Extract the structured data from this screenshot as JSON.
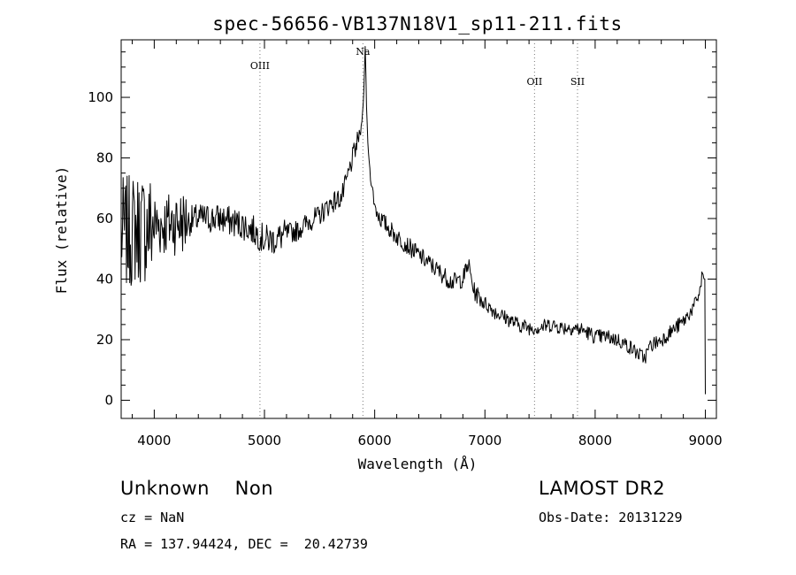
{
  "chart_data": {
    "type": "line",
    "title": "spec-56656-VB137N18V1_sp11-211.fits",
    "xlabel": "Wavelength (Å)",
    "ylabel": "Flux (relative)",
    "xlim": [
      3700,
      9100
    ],
    "ylim": [
      -6,
      119
    ],
    "x_ticks": [
      4000,
      5000,
      6000,
      7000,
      8000,
      9000
    ],
    "y_ticks": [
      0,
      20,
      40,
      60,
      80,
      100
    ],
    "grid": false,
    "line_color": "#000000",
    "spectral_lines": [
      {
        "label": "OIII",
        "wavelength": 4959
      },
      {
        "label": "Na",
        "wavelength": 5893
      },
      {
        "label": "OII",
        "wavelength": 7450
      },
      {
        "label": "SII",
        "wavelength": 7840
      }
    ],
    "continuum": {
      "x": [
        3700,
        3750,
        3800,
        3850,
        3900,
        3950,
        4000,
        4100,
        4200,
        4300,
        4400,
        4500,
        4600,
        4700,
        4800,
        4900,
        5000,
        5100,
        5200,
        5300,
        5400,
        5500,
        5600,
        5700,
        5750,
        5800,
        5850,
        5880,
        5900,
        5915,
        5925,
        5940,
        5960,
        6000,
        6050,
        6100,
        6200,
        6300,
        6400,
        6500,
        6600,
        6700,
        6800,
        6850,
        6900,
        7000,
        7100,
        7200,
        7300,
        7400,
        7500,
        7600,
        7700,
        7800,
        7900,
        8000,
        8100,
        8200,
        8300,
        8400,
        8450,
        8500,
        8600,
        8700,
        8800,
        8900,
        8950,
        8975,
        8990,
        9000
      ],
      "y": [
        55,
        55,
        56,
        57,
        57,
        57,
        58,
        58,
        59,
        59,
        60,
        60,
        60,
        59,
        58,
        56,
        53,
        53,
        55,
        56,
        59,
        61,
        65,
        67,
        73,
        80,
        86,
        90,
        100,
        118,
        98,
        83,
        75,
        64,
        60,
        58,
        54,
        51,
        48,
        45,
        42,
        39,
        40,
        45,
        36,
        32,
        29,
        27,
        25,
        24,
        24,
        25,
        24,
        24,
        23,
        21,
        21,
        20,
        18,
        15,
        14,
        18,
        20,
        23,
        26,
        31,
        36,
        42,
        40,
        2
      ]
    }
  }
}
